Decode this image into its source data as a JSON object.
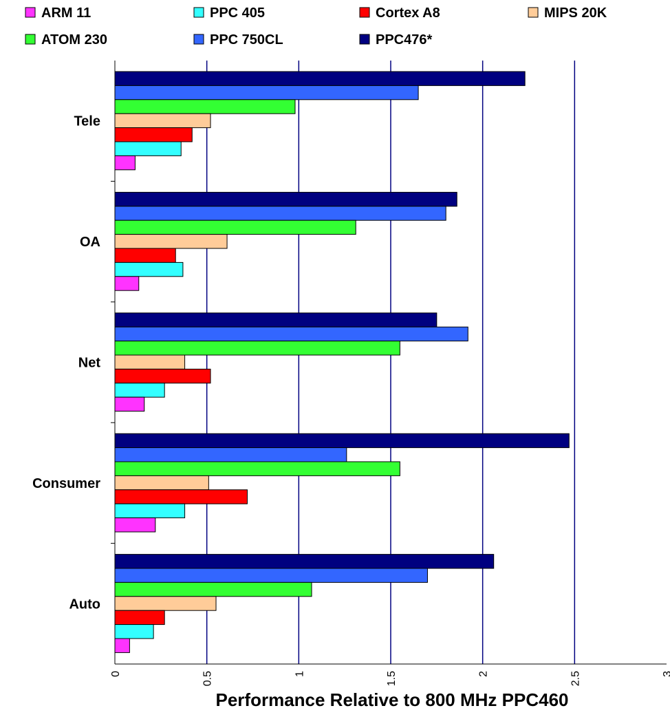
{
  "chart_data": {
    "type": "bar",
    "orientation": "horizontal",
    "categories": [
      "Tele",
      "OA",
      "Net",
      "Consumer",
      "Auto"
    ],
    "series": [
      {
        "name": "ARM 11",
        "color": "#ff33ff",
        "values": [
          0.11,
          0.13,
          0.16,
          0.22,
          0.08
        ]
      },
      {
        "name": "PPC 405",
        "color": "#33ffff",
        "values": [
          0.36,
          0.37,
          0.27,
          0.38,
          0.21
        ]
      },
      {
        "name": "Cortex A8",
        "color": "#ff0000",
        "values": [
          0.42,
          0.33,
          0.52,
          0.72,
          0.27
        ]
      },
      {
        "name": "MIPS 20K",
        "color": "#ffcc99",
        "values": [
          0.52,
          0.61,
          0.38,
          0.51,
          0.55
        ]
      },
      {
        "name": "ATOM 230",
        "color": "#33ff33",
        "values": [
          0.98,
          1.31,
          1.55,
          1.55,
          1.07
        ]
      },
      {
        "name": "PPC 750CL",
        "color": "#3366ff",
        "values": [
          1.65,
          1.8,
          1.92,
          1.26,
          1.7
        ]
      },
      {
        "name": "PPC476*",
        "color": "#000080",
        "values": [
          2.23,
          1.86,
          1.75,
          2.47,
          2.06
        ]
      }
    ],
    "xlabel": "Performance Relative to 800 MHz PPC460",
    "ylabel": "",
    "xlim": [
      0,
      3
    ],
    "x_ticks": [
      "0",
      "0.5",
      "1",
      "1.5",
      "2",
      "2.5",
      "3"
    ],
    "grid": "vertical",
    "grid_color": "#000080",
    "legend_placement": "top"
  }
}
